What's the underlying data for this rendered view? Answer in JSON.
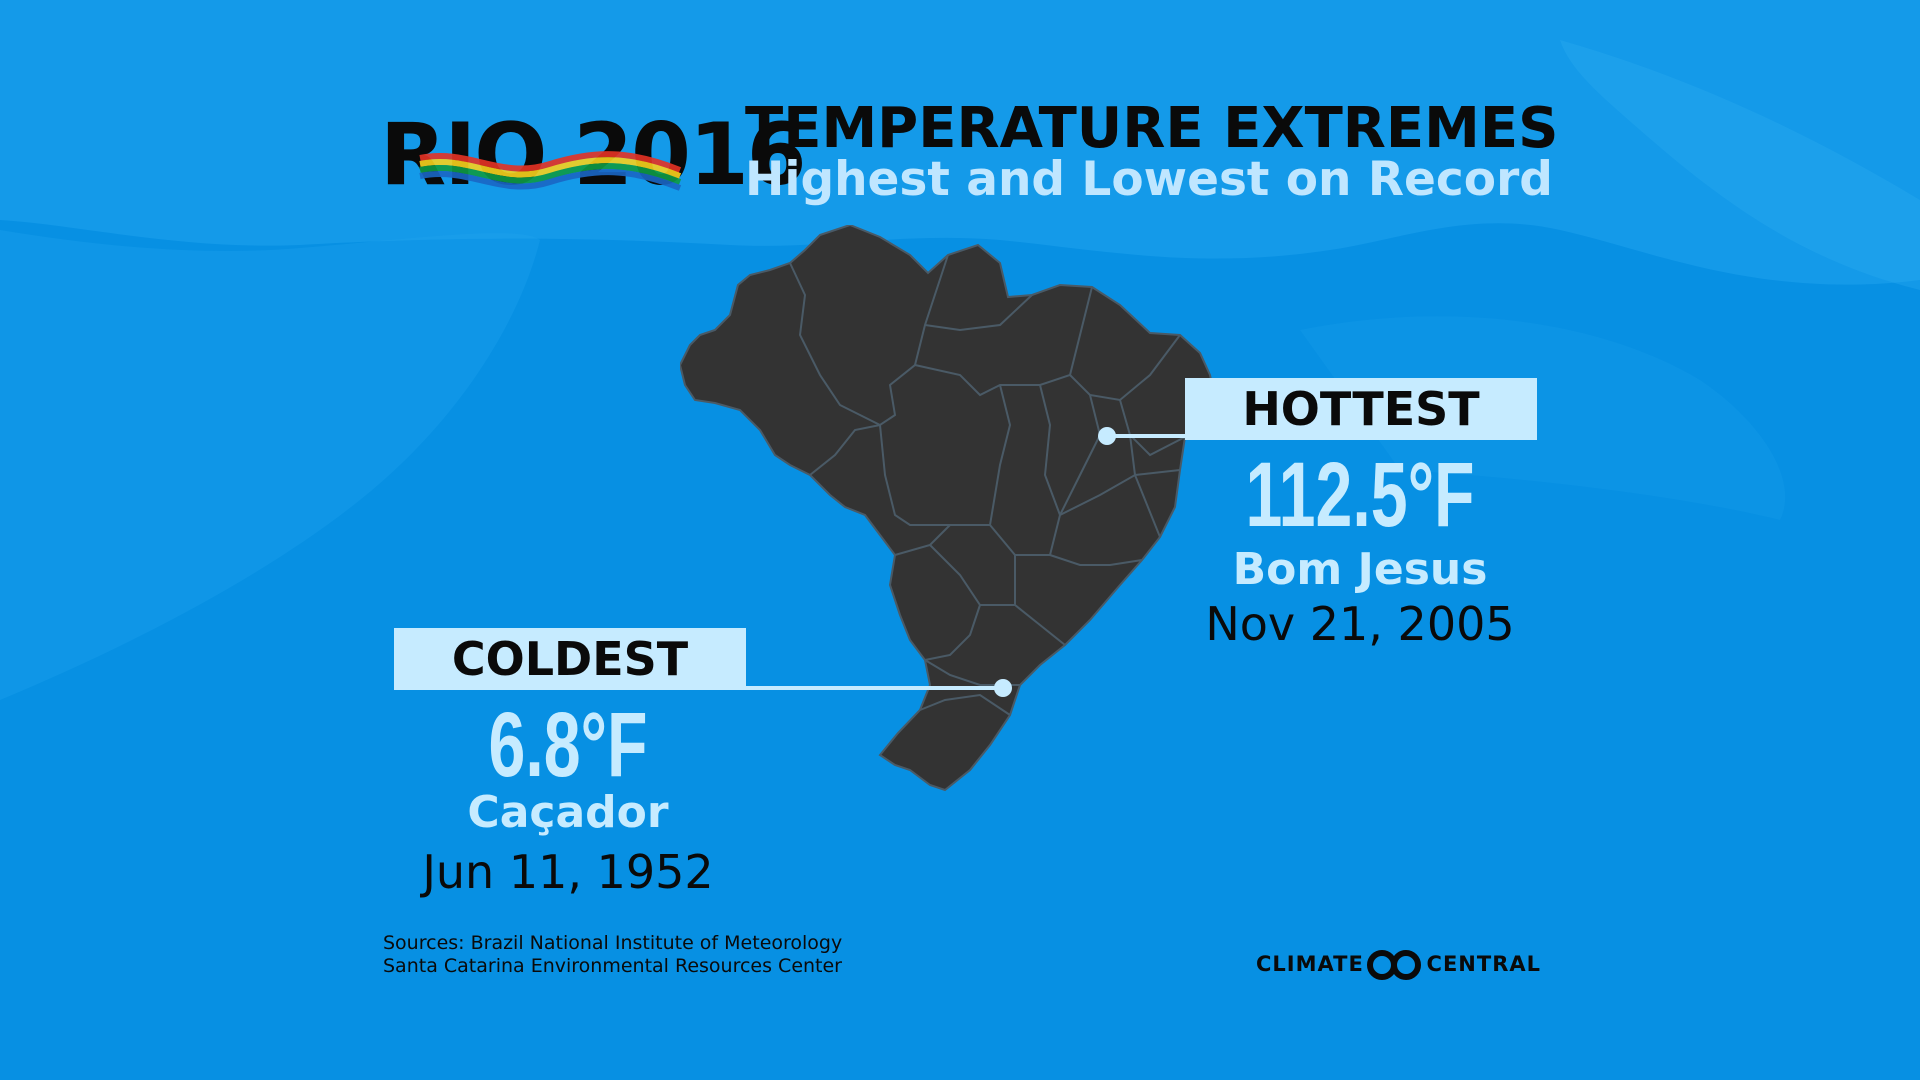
{
  "logo": {
    "text": "RIO 2016",
    "ribbon_colors": [
      "#e63224",
      "#f7d21c",
      "#0d9a45",
      "#1a66c4"
    ]
  },
  "header": {
    "title": "TEMPERATURE EXTREMES",
    "subtitle": "Highest and Lowest on Record"
  },
  "hottest": {
    "label": "HOTTEST",
    "temperature": "112.5°F",
    "place": "Bom Jesus",
    "date": "Nov 21, 2005"
  },
  "coldest": {
    "label": "COLDEST",
    "temperature": "6.8°F",
    "place": "Caçador",
    "date": "Jun 11, 1952"
  },
  "footer": {
    "sources_line1": "Sources: Brazil National Institute of Meteorology",
    "sources_line2": "Santa Catarina Environmental Resources Center",
    "brand_left": "CLIMATE",
    "brand_right": "CENTRAL"
  },
  "colors": {
    "background": "#0790e3",
    "background_wave": "#1ea2ee",
    "map_fill": "#333333",
    "map_border": "#4a5a66",
    "label_box": "#c6ebff",
    "accent_text": "#c6ebff",
    "dark_text": "#0a0a0a"
  }
}
